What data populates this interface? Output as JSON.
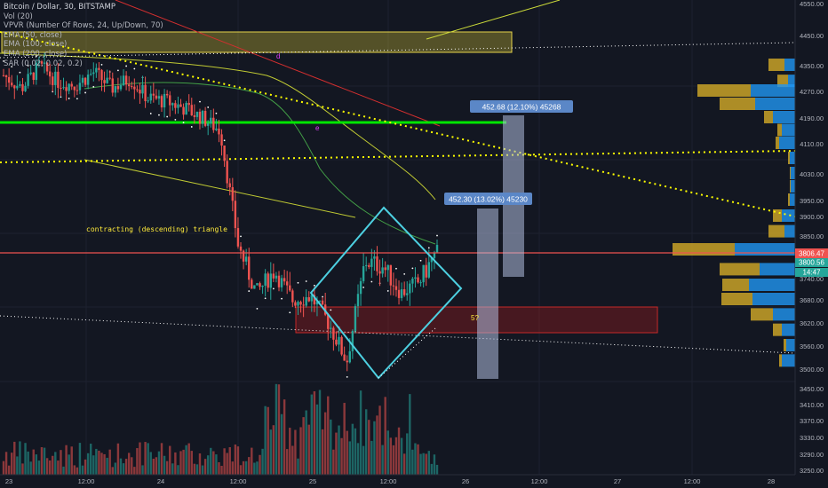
{
  "header": {
    "title": "Bitcoin / Dollar, 30, BITSTAMP",
    "indicators": [
      "Vol (20)",
      "VPVR (Number Of Rows, 24, Up/Down, 70)",
      "EMA (50, close)",
      "EMA (100, close)",
      "EMA (200, close)",
      "SAR (0.02, 0.02, 0.2)"
    ]
  },
  "colors": {
    "background": "#131722",
    "up": "#26a69a",
    "down": "#ef5350",
    "price_line": "#ef5350",
    "support_green": "#00e600",
    "yellow_dotted": "#ffff00",
    "diamond": "#4dd0e1",
    "vpvr_up": "#2196f3",
    "vpvr_down": "#c9a227"
  },
  "annotations": {
    "triangle_label": "contracting (descending) triangle",
    "question_label": "5?",
    "target_1": "452.68 (12.10%) 45268",
    "target_2": "452.30 (13.02%) 45230",
    "marker_d": "d",
    "marker_e": "e"
  },
  "price_tags": {
    "current": "3806.47",
    "secondary": "3800.56",
    "countdown": "14:47"
  },
  "chart_data": {
    "type": "candlestick",
    "y_axis_ticks": [
      "4550.00",
      "4450.00",
      "4350.00",
      "4270.00",
      "4190.00",
      "4110.00",
      "4030.00",
      "3950.00",
      "3900.00",
      "3850.00",
      "3790.00",
      "3740.00",
      "3680.00",
      "3620.00",
      "3560.00",
      "3500.00",
      "3450.00",
      "3410.00",
      "3370.00",
      "3330.00",
      "3290.00",
      "3250.00"
    ],
    "x_axis_ticks": [
      "23",
      "12:00",
      "24",
      "12:00",
      "25",
      "12:00",
      "26",
      "12:00",
      "27",
      "12:00",
      "28"
    ],
    "current_price": 3806.47,
    "support_level": 4180,
    "resistance_zone": [
      4400,
      4450
    ],
    "target_zone": [
      3600,
      3660
    ],
    "approx_path": [
      4320,
      4280,
      4350,
      4300,
      4290,
      4330,
      4280,
      4310,
      4250,
      4240,
      4220,
      4190,
      4150,
      3820,
      3700,
      3760,
      3680,
      3690,
      3620,
      3520,
      3780,
      3770,
      3700,
      3730,
      3806
    ]
  }
}
